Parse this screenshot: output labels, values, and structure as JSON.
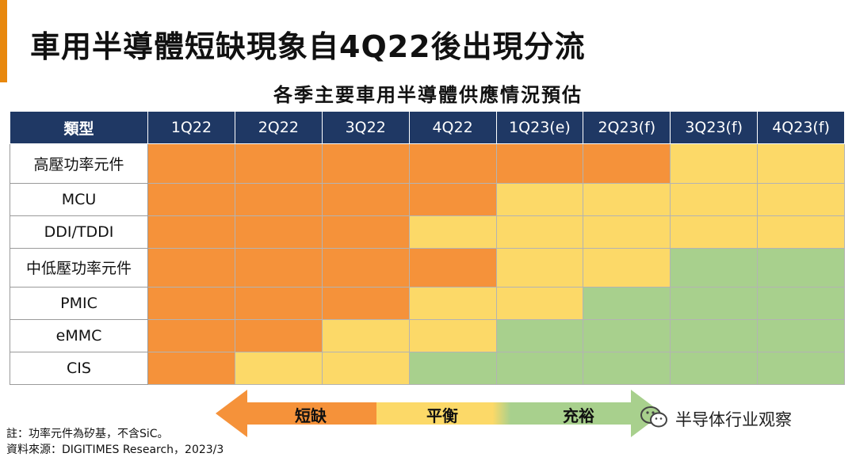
{
  "title": "車用半導體短缺現象自4Q22後出現分流",
  "subtitle": "各季主要車用半導體供應情況預估",
  "colors": {
    "header": "#1f3864",
    "accent": "#e8880d",
    "短缺": "#f5923a",
    "平衡": "#fcd968",
    "充裕": "#a8d08d"
  },
  "chart_data": {
    "type": "table",
    "title": "各季主要車用半導體供應情況預估",
    "row_header": "類型",
    "columns": [
      "1Q22",
      "2Q22",
      "3Q22",
      "4Q22",
      "1Q23(e)",
      "2Q23(f)",
      "3Q23(f)",
      "4Q23(f)"
    ],
    "rows": [
      {
        "name": "高壓功率元件",
        "status": [
          "短缺",
          "短缺",
          "短缺",
          "短缺",
          "短缺",
          "短缺",
          "平衡",
          "平衡"
        ]
      },
      {
        "name": "MCU",
        "status": [
          "短缺",
          "短缺",
          "短缺",
          "短缺",
          "平衡",
          "平衡",
          "平衡",
          "平衡"
        ]
      },
      {
        "name": "DDI/TDDI",
        "status": [
          "短缺",
          "短缺",
          "短缺",
          "平衡",
          "平衡",
          "平衡",
          "平衡",
          "平衡"
        ]
      },
      {
        "name": "中低壓功率元件",
        "status": [
          "短缺",
          "短缺",
          "短缺",
          "短缺",
          "平衡",
          "平衡",
          "充裕",
          "充裕"
        ]
      },
      {
        "name": "PMIC",
        "status": [
          "短缺",
          "短缺",
          "短缺",
          "平衡",
          "平衡",
          "充裕",
          "充裕",
          "充裕"
        ]
      },
      {
        "name": "eMMC",
        "status": [
          "短缺",
          "短缺",
          "平衡",
          "平衡",
          "充裕",
          "充裕",
          "充裕",
          "充裕"
        ]
      },
      {
        "name": "CIS",
        "status": [
          "短缺",
          "平衡",
          "平衡",
          "充裕",
          "充裕",
          "充裕",
          "充裕",
          "充裕"
        ]
      }
    ],
    "legend": [
      "短缺",
      "平衡",
      "充裕"
    ]
  },
  "notes": {
    "note1": "註：功率元件為矽基，不含SiC。",
    "source": "資料來源：DIGITIMES Research，2023/3"
  },
  "watermark": {
    "icon": "wechat-icon",
    "name": "半导体行业观察"
  }
}
